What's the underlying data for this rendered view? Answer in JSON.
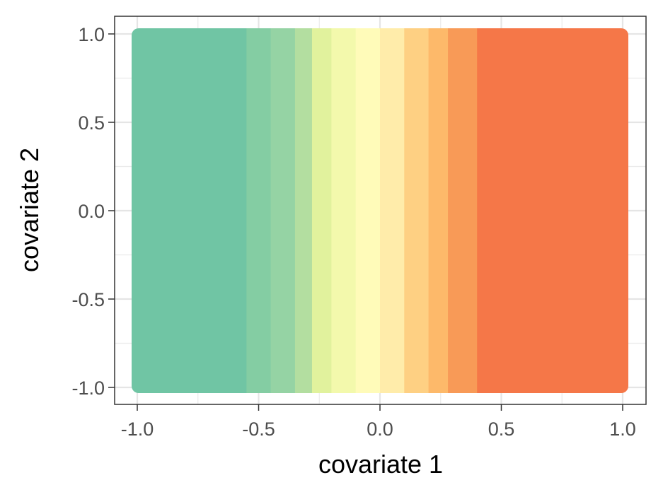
{
  "chart_data": {
    "type": "heatmap",
    "xlabel": "covariate 1",
    "ylabel": "covariate 2",
    "xlim": [
      -1.0,
      1.0
    ],
    "ylim": [
      -1.0,
      1.0
    ],
    "x_ticks": [
      -1.0,
      -0.5,
      0.0,
      0.5,
      1.0
    ],
    "y_ticks": [
      -1.0,
      -0.5,
      0.0,
      0.5,
      1.0
    ],
    "x_tick_labels": [
      "-1.0",
      "-0.5",
      "0.0",
      "0.5",
      "1.0"
    ],
    "y_tick_labels": [
      "-1.0",
      "-0.5",
      "0.0",
      "0.5",
      "1.0"
    ],
    "grid": true,
    "legend": "none",
    "color_varies_with": "covariate 1",
    "color_bands": [
      {
        "x_from": -1.0,
        "x_to": -0.55,
        "color": "#70c5a4"
      },
      {
        "x_from": -0.55,
        "x_to": -0.45,
        "color": "#84cda3"
      },
      {
        "x_from": -0.45,
        "x_to": -0.35,
        "color": "#95d3a4"
      },
      {
        "x_from": -0.35,
        "x_to": -0.28,
        "color": "#b3deA0"
      },
      {
        "x_from": -0.28,
        "x_to": -0.2,
        "color": "#e1f29d"
      },
      {
        "x_from": -0.2,
        "x_to": -0.1,
        "color": "#f3f9ac"
      },
      {
        "x_from": -0.1,
        "x_to": 0.0,
        "color": "#fffbb9"
      },
      {
        "x_from": 0.0,
        "x_to": 0.1,
        "color": "#ffecaa"
      },
      {
        "x_from": 0.1,
        "x_to": 0.2,
        "color": "#fed083"
      },
      {
        "x_from": 0.2,
        "x_to": 0.28,
        "color": "#fdb96a"
      },
      {
        "x_from": 0.28,
        "x_to": 0.4,
        "color": "#f89a57"
      },
      {
        "x_from": 0.4,
        "x_to": 1.0,
        "color": "#f57748"
      }
    ]
  }
}
